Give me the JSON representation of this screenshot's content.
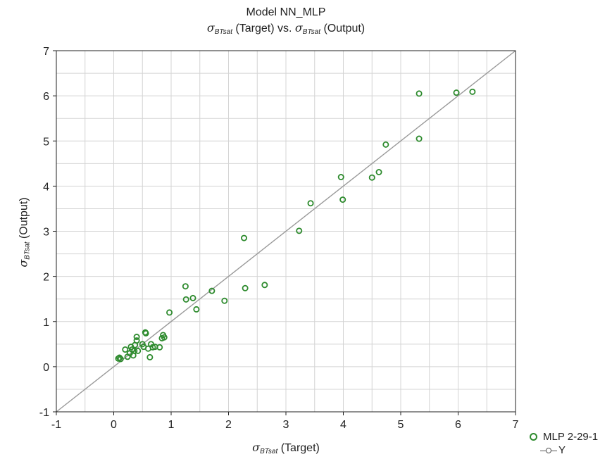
{
  "chart_data": {
    "type": "scatter",
    "title": "Model NN_MLP",
    "subtitle": {
      "symbol": "σ",
      "subscript": "BTsat",
      "left_text": " (Target) vs. ",
      "right_text": " (Output)"
    },
    "xlabel": {
      "symbol": "σ",
      "subscript": "BTsat",
      "text": " (Target)"
    },
    "ylabel": {
      "symbol": "σ",
      "subscript": "BTsat",
      "text": " (Output)"
    },
    "xlim": [
      -1,
      7
    ],
    "ylim": [
      -1,
      7
    ],
    "xticks": [
      -1,
      0,
      1,
      2,
      3,
      4,
      5,
      6,
      7
    ],
    "yticks": [
      -1,
      0,
      1,
      2,
      3,
      4,
      5,
      6,
      7
    ],
    "grid": true,
    "legend_position": "bottom-right outside",
    "colors": {
      "points": "#2e8b2e",
      "line": "#999999",
      "axes": "#222222",
      "grid": "#d4d4d4"
    },
    "series": [
      {
        "name": "MLP 2-29-1",
        "kind": "points",
        "points": [
          [
            0.08,
            0.18
          ],
          [
            0.1,
            0.2
          ],
          [
            0.12,
            0.17
          ],
          [
            0.2,
            0.38
          ],
          [
            0.24,
            0.22
          ],
          [
            0.28,
            0.3
          ],
          [
            0.3,
            0.44
          ],
          [
            0.32,
            0.38
          ],
          [
            0.34,
            0.25
          ],
          [
            0.36,
            0.35
          ],
          [
            0.37,
            0.48
          ],
          [
            0.4,
            0.58
          ],
          [
            0.4,
            0.66
          ],
          [
            0.42,
            0.35
          ],
          [
            0.5,
            0.5
          ],
          [
            0.52,
            0.44
          ],
          [
            0.55,
            0.76
          ],
          [
            0.56,
            0.74
          ],
          [
            0.6,
            0.4
          ],
          [
            0.63,
            0.21
          ],
          [
            0.65,
            0.5
          ],
          [
            0.68,
            0.43
          ],
          [
            0.72,
            0.44
          ],
          [
            0.8,
            0.43
          ],
          [
            0.84,
            0.63
          ],
          [
            0.86,
            0.7
          ],
          [
            0.88,
            0.65
          ],
          [
            0.97,
            1.2
          ],
          [
            1.25,
            1.78
          ],
          [
            1.26,
            1.49
          ],
          [
            1.38,
            1.52
          ],
          [
            1.44,
            1.27
          ],
          [
            1.71,
            1.68
          ],
          [
            1.93,
            1.46
          ],
          [
            2.27,
            2.85
          ],
          [
            2.29,
            1.74
          ],
          [
            2.63,
            1.81
          ],
          [
            3.23,
            3.01
          ],
          [
            3.43,
            3.62
          ],
          [
            3.96,
            4.2
          ],
          [
            3.99,
            3.7
          ],
          [
            4.5,
            4.19
          ],
          [
            4.62,
            4.31
          ],
          [
            4.74,
            4.92
          ],
          [
            5.32,
            6.05
          ],
          [
            5.32,
            5.05
          ],
          [
            5.97,
            6.07
          ],
          [
            6.25,
            6.09
          ]
        ]
      },
      {
        "name": "Y",
        "kind": "line",
        "points": [
          [
            -1,
            -1
          ],
          [
            7,
            7
          ]
        ]
      }
    ]
  }
}
